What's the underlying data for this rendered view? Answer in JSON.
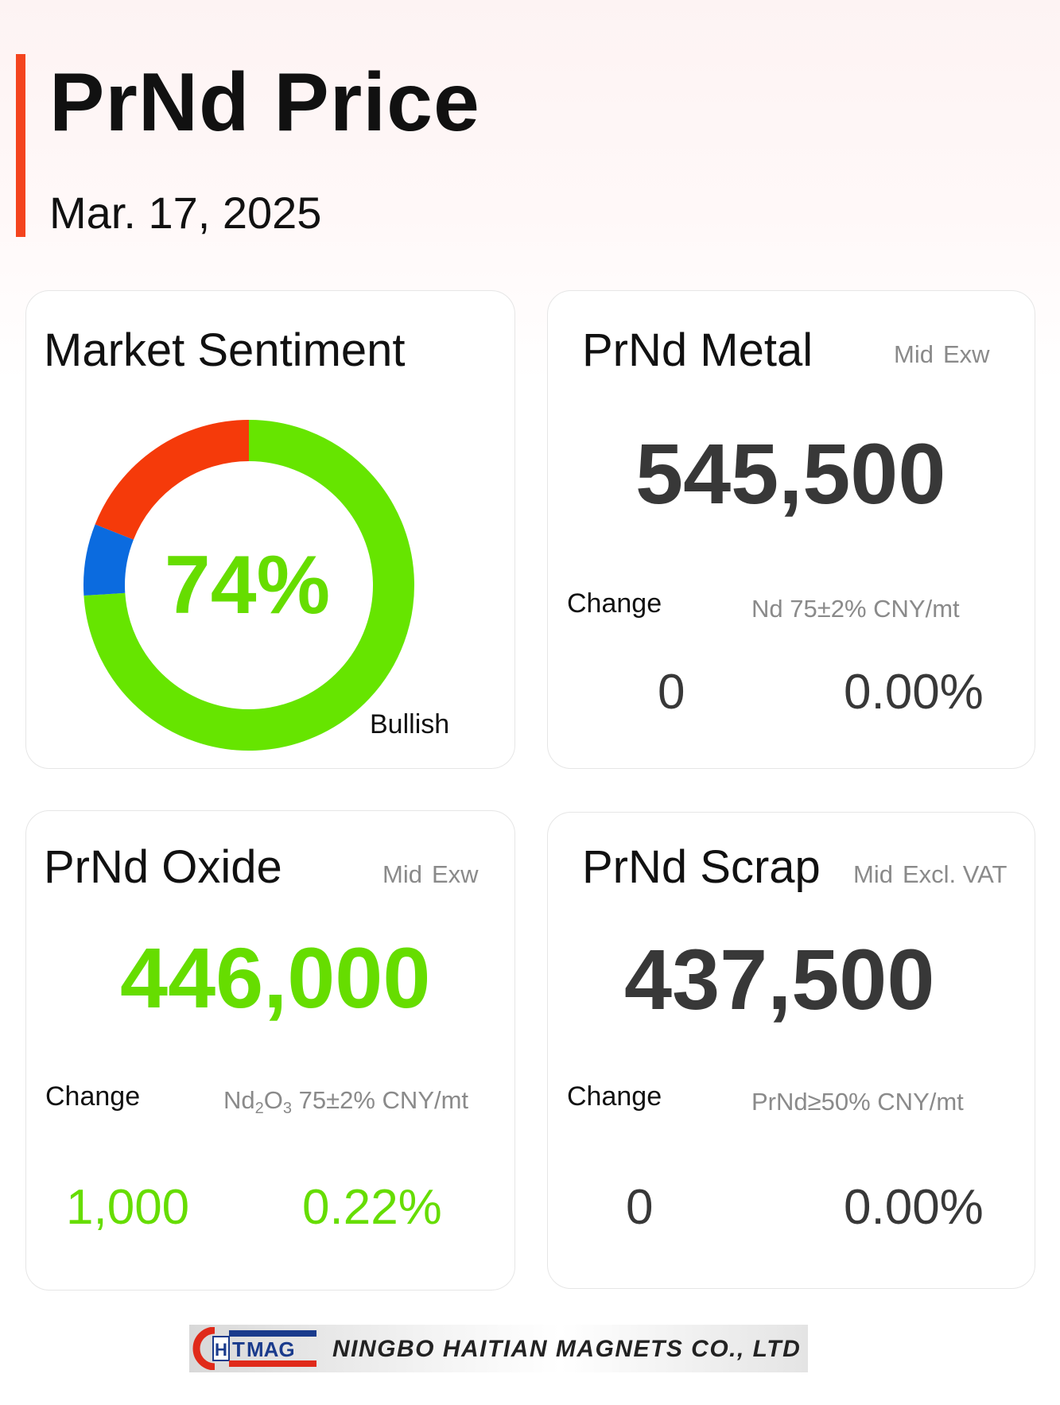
{
  "header": {
    "title": "PrNd Price",
    "date": "Mar. 17, 2025"
  },
  "colors": {
    "accent": "#f4441e",
    "positive": "#66dd00",
    "neutral_value": "#383838",
    "bearish": "#f43a0a",
    "neutral_slice": "#0b6bdf",
    "muted_text": "#8a8a8a"
  },
  "sentiment": {
    "title": "Market Sentiment",
    "center_value": "74%",
    "label": "Bullish"
  },
  "chart_data": {
    "type": "pie",
    "title": "",
    "categories": [
      "Bullish",
      "Neutral",
      "Bearish"
    ],
    "values": [
      74,
      7,
      19
    ],
    "colors": [
      "#66e500",
      "#0b6bdf",
      "#f53a0a"
    ]
  },
  "metal": {
    "title": "PrNd Metal",
    "tag1": "Mid",
    "tag2": "Exw",
    "price": "545,500",
    "change_label": "Change",
    "spec": "Nd 75±2% CNY/mt",
    "change": "0",
    "change_pct": "0.00%"
  },
  "oxide": {
    "title": "PrNd Oxide",
    "tag1": "Mid",
    "tag2": "Exw",
    "price": "446,000",
    "change_label": "Change",
    "spec_parts": [
      "Nd",
      "2",
      "O",
      "3",
      " 75±2% CNY/mt"
    ],
    "change": "1,000",
    "change_pct": "0.22%"
  },
  "scrap": {
    "title": "PrNd Scrap",
    "tag1": "Mid",
    "tag2": "Excl. VAT",
    "price": "437,500",
    "change_label": "Change",
    "spec": "PrNd≥50% CNY/mt",
    "change": "0",
    "change_pct": "0.00%"
  },
  "footer": {
    "logo_text": "HTMAG",
    "company": "NINGBO HAITIAN MAGNETS CO., LTD"
  }
}
